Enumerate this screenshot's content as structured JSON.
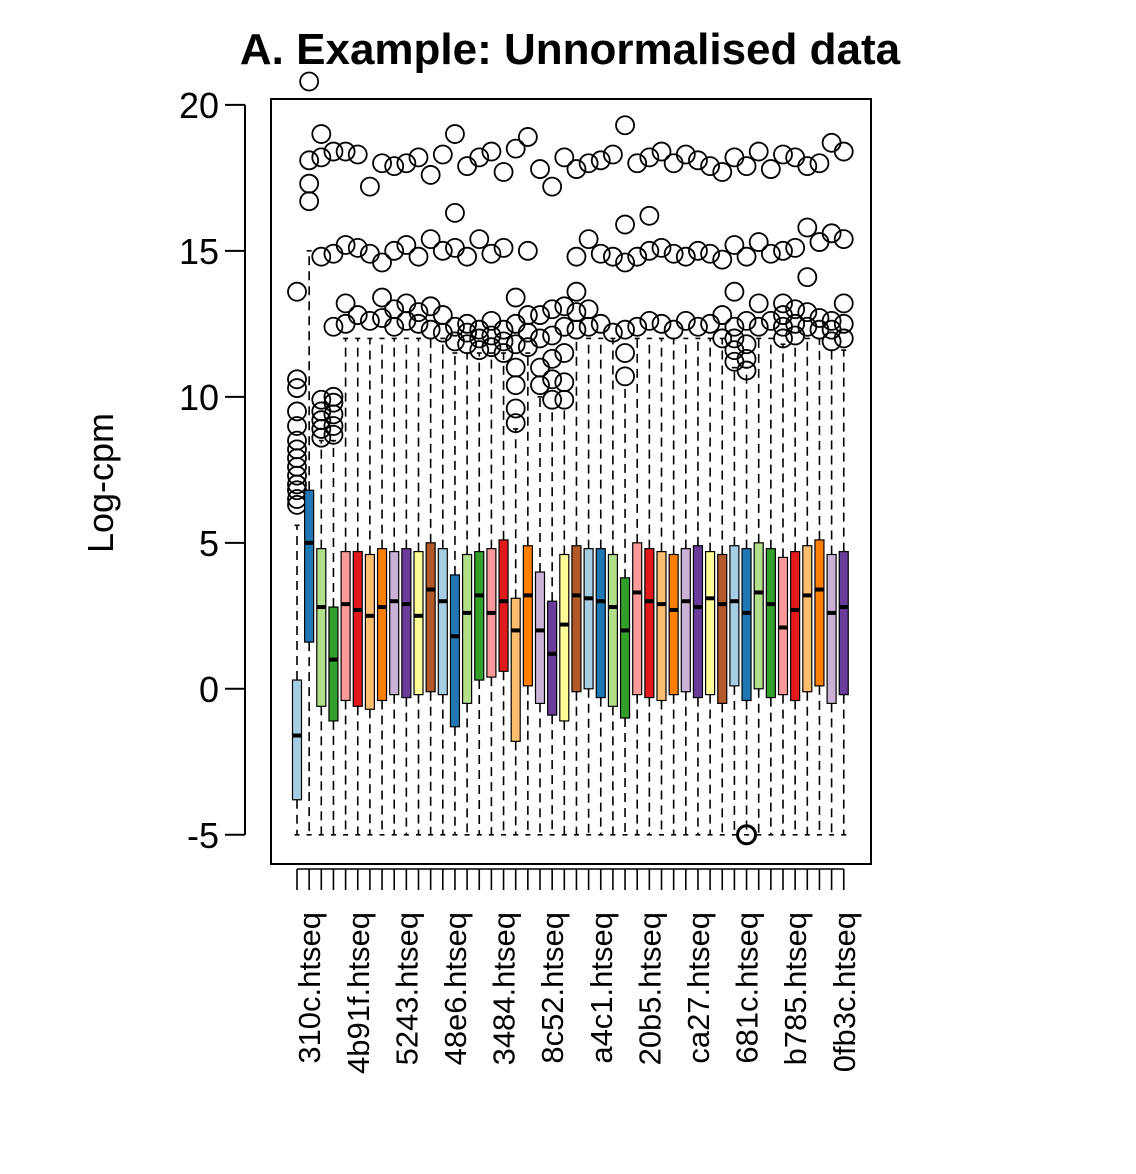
{
  "chart_data": {
    "type": "box",
    "title": "A. Example: Unnormalised data",
    "ylabel": "Log-cpm",
    "xlabel": "",
    "ylim": [
      -6.0,
      20.2
    ],
    "yticks": [
      -5,
      0,
      5,
      10,
      15,
      20
    ],
    "grid": false,
    "legend": "none",
    "palette": [
      "#a6cee3",
      "#1f78b4",
      "#b2df8a",
      "#33a02c",
      "#fb9a99",
      "#e31a1c",
      "#fdbf6f",
      "#ff7f00",
      "#cab2d6",
      "#6a3d9a",
      "#ffff99",
      "#b15928"
    ],
    "xtick_labels": [
      "310c.htseq",
      "4b91f.htseq",
      "5243.htseq",
      "48e6.htseq",
      "3484.htseq",
      "8c52.htseq",
      "a4c1.htseq",
      "20b5.htseq",
      "ca27.htseq",
      "681c.htseq",
      "b785.htseq",
      "0fb3c.htseq"
    ],
    "xtick_positions": [
      1,
      5,
      9,
      13,
      17,
      21,
      25,
      29,
      33,
      37,
      41,
      45
    ],
    "boxes": [
      {
        "q1": -3.8,
        "median": -1.6,
        "q3": 0.3,
        "whisker_low": -5.0,
        "whisker_high": 5.6,
        "outliers": [
          6.3,
          6.5,
          6.8,
          7.0,
          7.3,
          7.6,
          7.9,
          8.2,
          8.5,
          9.0,
          9.5,
          10.3,
          10.6,
          13.6
        ]
      },
      {
        "q1": 1.6,
        "median": 5.0,
        "q3": 6.8,
        "whisker_low": -5.0,
        "whisker_high": 15.0,
        "outliers": [
          16.7,
          17.3,
          18.1,
          20.8
        ]
      },
      {
        "q1": -0.6,
        "median": 2.8,
        "q3": 4.8,
        "whisker_low": -5.0,
        "whisker_high": 8.5,
        "outliers": [
          8.6,
          8.9,
          9.2,
          9.5,
          9.9,
          14.8,
          18.2,
          19.0
        ]
      },
      {
        "q1": -1.1,
        "median": 1.0,
        "q3": 2.8,
        "whisker_low": -5.0,
        "whisker_high": 8.5,
        "outliers": [
          8.7,
          9.0,
          9.4,
          9.8,
          10.0,
          12.4,
          14.9,
          18.4
        ]
      },
      {
        "q1": -0.4,
        "median": 2.9,
        "q3": 4.7,
        "whisker_low": -5.0,
        "whisker_high": 12.0,
        "outliers": [
          12.5,
          13.2,
          15.2,
          18.4
        ]
      },
      {
        "q1": -0.6,
        "median": 2.7,
        "q3": 4.7,
        "whisker_low": -5.0,
        "whisker_high": 12.0,
        "outliers": [
          12.8,
          15.1,
          18.3
        ]
      },
      {
        "q1": -0.7,
        "median": 2.5,
        "q3": 4.6,
        "whisker_low": -5.0,
        "whisker_high": 12.0,
        "outliers": [
          12.6,
          14.9,
          17.2
        ]
      },
      {
        "q1": -0.4,
        "median": 2.8,
        "q3": 4.8,
        "whisker_low": -5.0,
        "whisker_high": 12.0,
        "outliers": [
          12.7,
          13.4,
          14.6,
          18.0
        ]
      },
      {
        "q1": -0.2,
        "median": 3.0,
        "q3": 4.7,
        "whisker_low": -5.0,
        "whisker_high": 12.0,
        "outliers": [
          12.4,
          13.0,
          15.0,
          17.9
        ]
      },
      {
        "q1": -0.3,
        "median": 2.9,
        "q3": 4.8,
        "whisker_low": -5.0,
        "whisker_high": 12.0,
        "outliers": [
          12.6,
          13.2,
          15.2,
          18.0
        ]
      },
      {
        "q1": -0.2,
        "median": 2.5,
        "q3": 4.7,
        "whisker_low": -5.0,
        "whisker_high": 12.0,
        "outliers": [
          12.5,
          12.9,
          14.8,
          18.2
        ]
      },
      {
        "q1": -0.1,
        "median": 3.4,
        "q3": 5.0,
        "whisker_low": -5.0,
        "whisker_high": 12.0,
        "outliers": [
          12.3,
          13.1,
          15.4,
          17.6
        ]
      },
      {
        "q1": -0.2,
        "median": 3.0,
        "q3": 4.8,
        "whisker_low": -5.0,
        "whisker_high": 12.0,
        "outliers": [
          12.2,
          12.8,
          15.0,
          18.3
        ]
      },
      {
        "q1": -1.3,
        "median": 1.8,
        "q3": 3.9,
        "whisker_low": -5.0,
        "whisker_high": 11.5,
        "outliers": [
          11.9,
          12.4,
          15.1,
          16.3,
          19.0
        ]
      },
      {
        "q1": -0.5,
        "median": 2.6,
        "q3": 4.6,
        "whisker_low": -5.0,
        "whisker_high": 11.5,
        "outliers": [
          11.8,
          12.2,
          12.5,
          14.8,
          17.9
        ]
      },
      {
        "q1": 0.3,
        "median": 3.2,
        "q3": 4.7,
        "whisker_low": -5.0,
        "whisker_high": 11.5,
        "outliers": [
          11.6,
          12.0,
          12.3,
          15.4,
          18.2
        ]
      },
      {
        "q1": 0.4,
        "median": 2.6,
        "q3": 4.8,
        "whisker_low": -5.0,
        "whisker_high": 11.5,
        "outliers": [
          11.7,
          12.1,
          12.6,
          14.9,
          18.4
        ]
      },
      {
        "q1": 0.6,
        "median": 3.0,
        "q3": 5.1,
        "whisker_low": -5.0,
        "whisker_high": 11.5,
        "outliers": [
          11.5,
          11.9,
          12.3,
          15.1,
          17.7
        ]
      },
      {
        "q1": -1.8,
        "median": 2.0,
        "q3": 3.1,
        "whisker_low": -5.0,
        "whisker_high": 8.9,
        "outliers": [
          9.1,
          9.6,
          10.4,
          11.0,
          11.8,
          12.5,
          13.4,
          18.5
        ]
      },
      {
        "q1": 0.1,
        "median": 3.2,
        "q3": 4.9,
        "whisker_low": -5.0,
        "whisker_high": 11.5,
        "outliers": [
          11.7,
          12.2,
          12.8,
          15.0,
          18.9
        ]
      },
      {
        "q1": -0.5,
        "median": 2.0,
        "q3": 4.0,
        "whisker_low": -5.0,
        "whisker_high": 10.0,
        "outliers": [
          10.4,
          11.0,
          12.0,
          12.8,
          17.8
        ]
      },
      {
        "q1": -0.9,
        "median": 1.2,
        "q3": 3.0,
        "whisker_low": -5.0,
        "whisker_high": 9.6,
        "outliers": [
          9.9,
          10.6,
          11.3,
          12.1,
          13.0,
          17.2
        ]
      },
      {
        "q1": -1.1,
        "median": 2.2,
        "q3": 4.6,
        "whisker_low": -5.0,
        "whisker_high": 9.6,
        "outliers": [
          9.9,
          10.5,
          11.5,
          12.4,
          13.1,
          18.2
        ]
      },
      {
        "q1": -0.1,
        "median": 3.2,
        "q3": 4.9,
        "whisker_low": -5.0,
        "whisker_high": 12.0,
        "outliers": [
          12.3,
          12.9,
          13.6,
          14.8,
          17.8
        ]
      },
      {
        "q1": 0.0,
        "median": 3.1,
        "q3": 4.8,
        "whisker_low": -5.0,
        "whisker_high": 12.0,
        "outliers": [
          12.4,
          13.0,
          15.4,
          18.0
        ]
      },
      {
        "q1": -0.3,
        "median": 3.0,
        "q3": 4.8,
        "whisker_low": -5.0,
        "whisker_high": 12.0,
        "outliers": [
          12.5,
          14.9,
          18.1
        ]
      },
      {
        "q1": -0.6,
        "median": 2.8,
        "q3": 4.6,
        "whisker_low": -5.0,
        "whisker_high": 12.0,
        "outliers": [
          12.2,
          14.8,
          18.3
        ]
      },
      {
        "q1": -1.0,
        "median": 2.0,
        "q3": 3.8,
        "whisker_low": -5.0,
        "whisker_high": 10.4,
        "outliers": [
          10.7,
          11.5,
          12.3,
          14.6,
          15.9,
          19.3
        ]
      },
      {
        "q1": -0.2,
        "median": 3.3,
        "q3": 5.0,
        "whisker_low": -5.0,
        "whisker_high": 12.0,
        "outliers": [
          12.4,
          14.8,
          18.0
        ]
      },
      {
        "q1": -0.3,
        "median": 3.0,
        "q3": 4.8,
        "whisker_low": -5.0,
        "whisker_high": 12.0,
        "outliers": [
          12.6,
          15.0,
          16.2,
          18.2
        ]
      },
      {
        "q1": -0.4,
        "median": 2.9,
        "q3": 4.7,
        "whisker_low": -5.0,
        "whisker_high": 12.0,
        "outliers": [
          12.5,
          15.1,
          18.4
        ]
      },
      {
        "q1": -0.2,
        "median": 2.7,
        "q3": 4.6,
        "whisker_low": -5.0,
        "whisker_high": 12.0,
        "outliers": [
          12.3,
          14.9,
          18.0
        ]
      },
      {
        "q1": -0.1,
        "median": 3.0,
        "q3": 4.8,
        "whisker_low": -5.0,
        "whisker_high": 12.0,
        "outliers": [
          12.6,
          14.8,
          18.3
        ]
      },
      {
        "q1": -0.3,
        "median": 2.8,
        "q3": 4.9,
        "whisker_low": -5.0,
        "whisker_high": 12.0,
        "outliers": [
          12.4,
          15.0,
          18.1
        ]
      },
      {
        "q1": -0.2,
        "median": 3.1,
        "q3": 4.7,
        "whisker_low": -5.0,
        "whisker_high": 12.0,
        "outliers": [
          12.5,
          14.9,
          17.9
        ]
      },
      {
        "q1": -0.5,
        "median": 2.9,
        "q3": 4.6,
        "whisker_low": -5.0,
        "whisker_high": 12.0,
        "outliers": [
          12.0,
          12.8,
          14.7,
          17.7
        ]
      },
      {
        "q1": 0.1,
        "median": 3.0,
        "q3": 4.9,
        "whisker_low": -5.0,
        "whisker_high": 11.0,
        "outliers": [
          11.2,
          11.6,
          12.0,
          12.4,
          13.6,
          15.2,
          18.2
        ]
      },
      {
        "q1": -0.4,
        "median": 2.6,
        "q3": 4.8,
        "whisker_low": -5.0,
        "whisker_high": 11.0,
        "outliers": [
          10.9,
          11.3,
          11.8,
          12.6,
          14.8,
          17.9,
          -5.0
        ]
      },
      {
        "q1": 0.0,
        "median": 3.3,
        "q3": 5.0,
        "whisker_low": -5.0,
        "whisker_high": 12.0,
        "outliers": [
          12.4,
          13.2,
          15.3,
          18.4
        ]
      },
      {
        "q1": -0.3,
        "median": 2.9,
        "q3": 4.8,
        "whisker_low": -5.0,
        "whisker_high": 12.0,
        "outliers": [
          12.6,
          14.9,
          17.8
        ]
      },
      {
        "q1": -0.2,
        "median": 2.1,
        "q3": 4.5,
        "whisker_low": -5.0,
        "whisker_high": 11.8,
        "outliers": [
          12.0,
          12.4,
          12.8,
          13.2,
          15.0,
          18.3
        ]
      },
      {
        "q1": -0.4,
        "median": 2.7,
        "q3": 4.7,
        "whisker_low": -5.0,
        "whisker_high": 11.8,
        "outliers": [
          12.1,
          12.5,
          13.0,
          15.1,
          18.2
        ]
      },
      {
        "q1": -0.1,
        "median": 3.2,
        "q3": 4.9,
        "whisker_low": -5.0,
        "whisker_high": 12.0,
        "outliers": [
          12.4,
          12.9,
          14.1,
          15.8,
          17.9
        ]
      },
      {
        "q1": 0.1,
        "median": 3.4,
        "q3": 5.1,
        "whisker_low": -5.0,
        "whisker_high": 12.0,
        "outliers": [
          12.3,
          12.7,
          15.3,
          18.0
        ]
      },
      {
        "q1": -0.5,
        "median": 2.6,
        "q3": 4.6,
        "whisker_low": -5.0,
        "whisker_high": 11.6,
        "outliers": [
          11.9,
          12.3,
          12.6,
          15.6,
          18.7
        ]
      },
      {
        "q1": -0.2,
        "median": 2.8,
        "q3": 4.7,
        "whisker_low": -5.0,
        "whisker_high": 11.6,
        "outliers": [
          12.0,
          12.5,
          13.2,
          15.4,
          18.4
        ]
      }
    ]
  }
}
